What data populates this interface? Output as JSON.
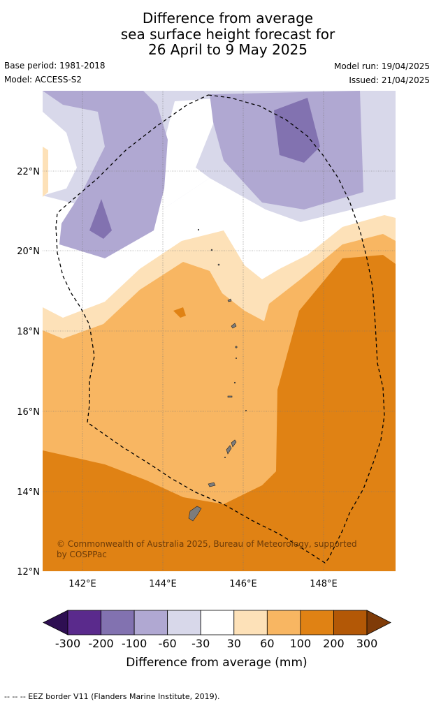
{
  "title": {
    "line1": "Difference from average",
    "line2": "sea surface height forecast for",
    "line3": "26 April to 9 May 2025"
  },
  "meta": {
    "base_period": "Base period: 1981-2018",
    "model": "Model: ACCESS-S2",
    "model_run": "Model run: 19/04/2025",
    "issued": "Issued: 21/04/2025"
  },
  "map": {
    "lat_labels": [
      "22°N",
      "20°N",
      "18°N",
      "16°N",
      "14°N",
      "12°N"
    ],
    "lon_labels": [
      "142°E",
      "144°E",
      "146°E",
      "148°E"
    ],
    "credit": "© Commonwealth of Australia 2025, Bureau of Meteorology, supported by COSPPac"
  },
  "legend": {
    "ticks": [
      "-300",
      "-200",
      "-100",
      "-60",
      "-30",
      "30",
      "60",
      "100",
      "200",
      "300"
    ],
    "colors": [
      "#2e0f52",
      "#5a2a8c",
      "#8272b0",
      "#b0a8d2",
      "#d8d8ea",
      "#ffffff",
      "#fde1b8",
      "#f8b662",
      "#e08214",
      "#b35806",
      "#7f3b08"
    ],
    "label": "Difference from average (mm)"
  },
  "footer": "--  --  -- EEZ border V11 (Flanders Marine Institute, 2019)."
}
